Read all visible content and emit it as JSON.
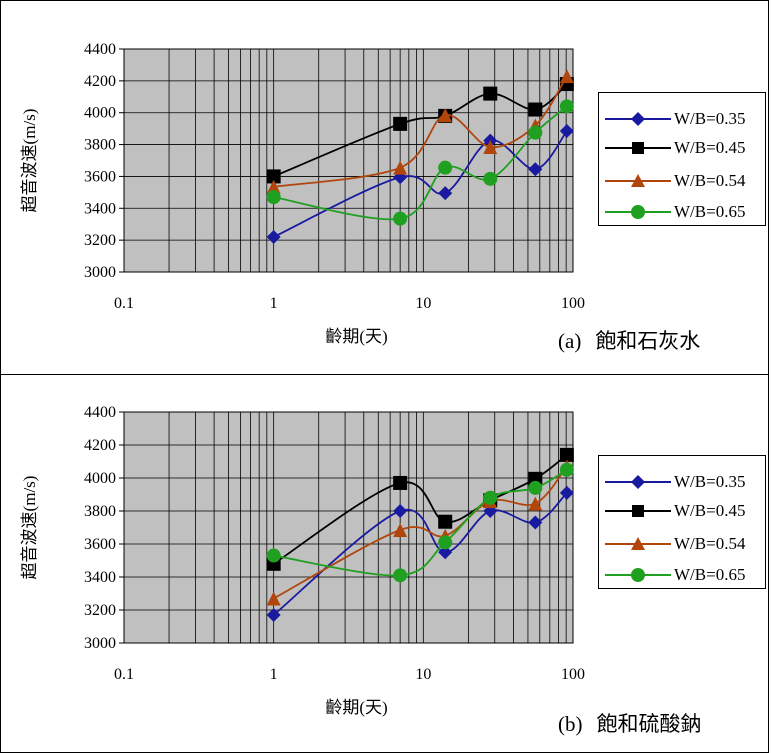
{
  "colors": {
    "plot_background": "#c0c0c0",
    "grid": "#000000",
    "series": [
      "#1a1aa0",
      "#000000",
      "#b0460c",
      "#20a020"
    ]
  },
  "chart_data": [
    {
      "type": "line",
      "caption_label": "(a)",
      "caption_text": "飽和石灰水",
      "xlabel": "齡期(天)",
      "ylabel": "超音波速(m/s)",
      "xscale": "log",
      "xlim": [
        0.1,
        100
      ],
      "ylim": [
        3000,
        4400
      ],
      "x_ticks": [
        "0.1",
        "1",
        "10",
        "100"
      ],
      "y_ticks": [
        "3000",
        "3200",
        "3400",
        "3600",
        "3800",
        "4000",
        "4200",
        "4400"
      ],
      "grid": true,
      "legend_position": "right",
      "x": [
        1,
        7,
        14,
        28,
        56,
        91
      ],
      "series": [
        {
          "name": "W/B=0.35",
          "marker": "diamond",
          "values": [
            3220,
            3595,
            3495,
            3825,
            3645,
            3885
          ]
        },
        {
          "name": "W/B=0.45",
          "marker": "square",
          "values": [
            3600,
            3930,
            3980,
            4120,
            4020,
            4180
          ]
        },
        {
          "name": "W/B=0.54",
          "marker": "triangle",
          "values": [
            3535,
            3655,
            3985,
            3785,
            3920,
            4230
          ]
        },
        {
          "name": "W/B=0.65",
          "marker": "circle",
          "values": [
            3470,
            3335,
            3655,
            3585,
            3875,
            4040
          ]
        }
      ]
    },
    {
      "type": "line",
      "caption_label": "(b)",
      "caption_text": "飽和硫酸鈉",
      "xlabel": "齡期(天)",
      "ylabel": "超音波速(m/s)",
      "xscale": "log",
      "xlim": [
        0.1,
        100
      ],
      "ylim": [
        3000,
        4400
      ],
      "x_ticks": [
        "0.1",
        "1",
        "10",
        "100"
      ],
      "y_ticks": [
        "3000",
        "3200",
        "3400",
        "3600",
        "3800",
        "4000",
        "4200",
        "4400"
      ],
      "grid": true,
      "legend_position": "right",
      "x": [
        1,
        7,
        14,
        28,
        56,
        91
      ],
      "series": [
        {
          "name": "W/B=0.35",
          "marker": "diamond",
          "values": [
            3170,
            3800,
            3550,
            3800,
            3730,
            3910
          ]
        },
        {
          "name": "W/B=0.45",
          "marker": "square",
          "values": [
            3480,
            3970,
            3735,
            3865,
            3995,
            4140
          ]
        },
        {
          "name": "W/B=0.54",
          "marker": "triangle",
          "values": [
            3270,
            3685,
            3650,
            3860,
            3845,
            4070
          ]
        },
        {
          "name": "W/B=0.65",
          "marker": "circle",
          "values": [
            3530,
            3410,
            3610,
            3880,
            3940,
            4050
          ]
        }
      ]
    }
  ]
}
